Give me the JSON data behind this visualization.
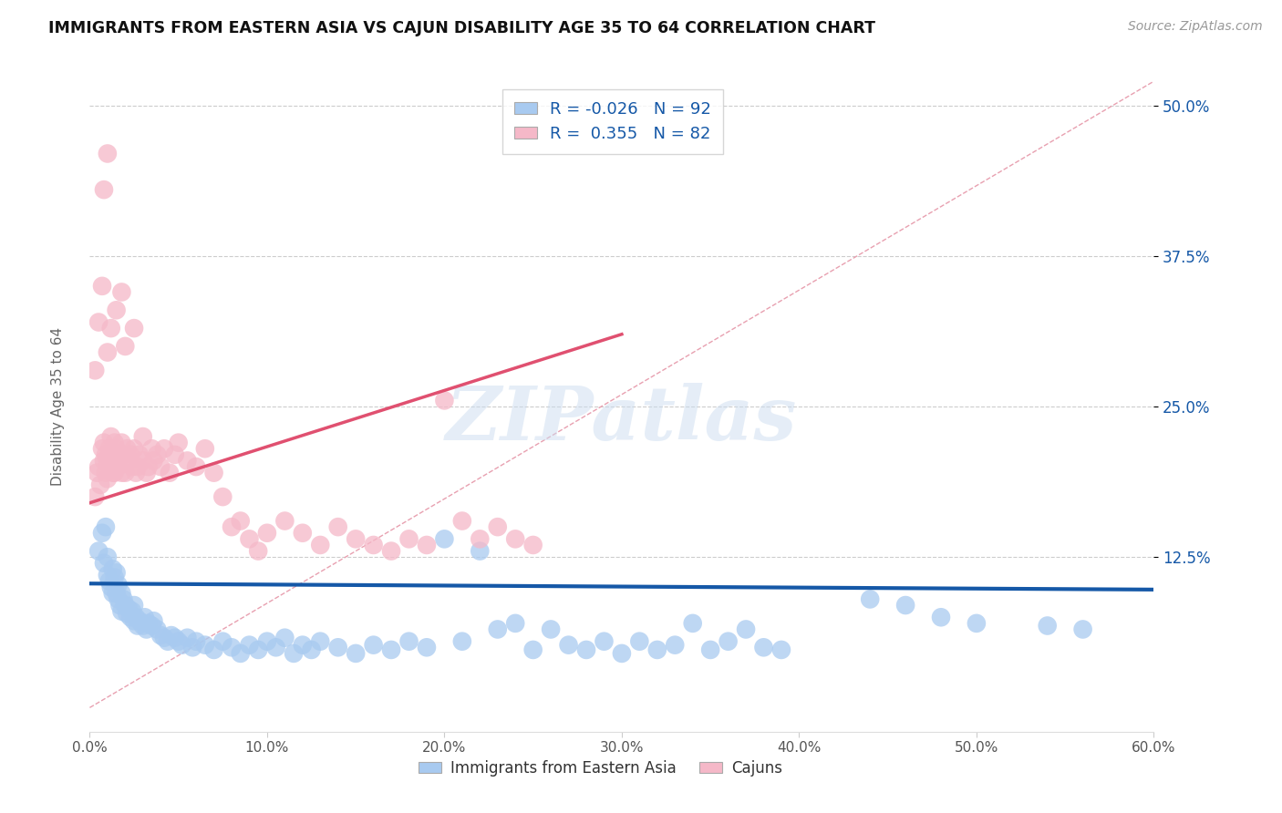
{
  "title": "IMMIGRANTS FROM EASTERN ASIA VS CAJUN DISABILITY AGE 35 TO 64 CORRELATION CHART",
  "source_text": "Source: ZipAtlas.com",
  "ylabel": "Disability Age 35 to 64",
  "xlim": [
    0.0,
    0.6
  ],
  "ylim": [
    -0.02,
    0.52
  ],
  "xtick_labels": [
    "0.0%",
    "10.0%",
    "20.0%",
    "30.0%",
    "40.0%",
    "50.0%",
    "60.0%"
  ],
  "xtick_values": [
    0.0,
    0.1,
    0.2,
    0.3,
    0.4,
    0.5,
    0.6
  ],
  "ytick_labels": [
    "12.5%",
    "25.0%",
    "37.5%",
    "50.0%"
  ],
  "ytick_values": [
    0.125,
    0.25,
    0.375,
    0.5
  ],
  "legend_blue_label": "Immigrants from Eastern Asia",
  "legend_pink_label": "Cajuns",
  "r_blue": -0.026,
  "n_blue": 92,
  "r_pink": 0.355,
  "n_pink": 82,
  "blue_color": "#a8caf0",
  "pink_color": "#f5b8c8",
  "blue_line_color": "#1558a7",
  "pink_line_color": "#e05070",
  "ref_line_color": "#e8a0b0",
  "watermark": "ZIPatlas",
  "blue_trend_x0": 0.0,
  "blue_trend_y0": 0.103,
  "blue_trend_x1": 0.6,
  "blue_trend_y1": 0.098,
  "pink_trend_x0": 0.0,
  "pink_trend_y0": 0.17,
  "pink_trend_x1": 0.3,
  "pink_trend_y1": 0.31,
  "blue_scatter_x": [
    0.005,
    0.007,
    0.008,
    0.009,
    0.01,
    0.01,
    0.011,
    0.012,
    0.013,
    0.013,
    0.014,
    0.015,
    0.015,
    0.016,
    0.016,
    0.017,
    0.018,
    0.018,
    0.019,
    0.02,
    0.021,
    0.022,
    0.023,
    0.024,
    0.025,
    0.025,
    0.026,
    0.027,
    0.028,
    0.03,
    0.031,
    0.032,
    0.033,
    0.035,
    0.036,
    0.038,
    0.04,
    0.042,
    0.044,
    0.046,
    0.048,
    0.05,
    0.052,
    0.055,
    0.058,
    0.06,
    0.065,
    0.07,
    0.075,
    0.08,
    0.085,
    0.09,
    0.095,
    0.1,
    0.105,
    0.11,
    0.115,
    0.12,
    0.125,
    0.13,
    0.14,
    0.15,
    0.16,
    0.17,
    0.18,
    0.19,
    0.2,
    0.21,
    0.22,
    0.23,
    0.24,
    0.25,
    0.26,
    0.27,
    0.28,
    0.29,
    0.3,
    0.31,
    0.32,
    0.33,
    0.34,
    0.35,
    0.36,
    0.37,
    0.38,
    0.39,
    0.44,
    0.46,
    0.48,
    0.5,
    0.54,
    0.56
  ],
  "blue_scatter_y": [
    0.13,
    0.145,
    0.12,
    0.15,
    0.125,
    0.11,
    0.105,
    0.1,
    0.115,
    0.095,
    0.108,
    0.112,
    0.095,
    0.102,
    0.09,
    0.085,
    0.095,
    0.08,
    0.09,
    0.085,
    0.078,
    0.082,
    0.075,
    0.08,
    0.072,
    0.085,
    0.075,
    0.068,
    0.072,
    0.068,
    0.075,
    0.065,
    0.07,
    0.068,
    0.072,
    0.065,
    0.06,
    0.058,
    0.055,
    0.06,
    0.058,
    0.055,
    0.052,
    0.058,
    0.05,
    0.055,
    0.052,
    0.048,
    0.055,
    0.05,
    0.045,
    0.052,
    0.048,
    0.055,
    0.05,
    0.058,
    0.045,
    0.052,
    0.048,
    0.055,
    0.05,
    0.045,
    0.052,
    0.048,
    0.055,
    0.05,
    0.14,
    0.055,
    0.13,
    0.065,
    0.07,
    0.048,
    0.065,
    0.052,
    0.048,
    0.055,
    0.045,
    0.055,
    0.048,
    0.052,
    0.07,
    0.048,
    0.055,
    0.065,
    0.05,
    0.048,
    0.09,
    0.085,
    0.075,
    0.07,
    0.068,
    0.065
  ],
  "pink_scatter_x": [
    0.003,
    0.004,
    0.005,
    0.006,
    0.007,
    0.008,
    0.008,
    0.009,
    0.009,
    0.01,
    0.01,
    0.011,
    0.012,
    0.012,
    0.013,
    0.013,
    0.014,
    0.014,
    0.015,
    0.015,
    0.016,
    0.017,
    0.018,
    0.018,
    0.019,
    0.02,
    0.021,
    0.022,
    0.023,
    0.024,
    0.025,
    0.026,
    0.027,
    0.028,
    0.03,
    0.032,
    0.033,
    0.035,
    0.036,
    0.038,
    0.04,
    0.042,
    0.045,
    0.048,
    0.05,
    0.055,
    0.06,
    0.065,
    0.07,
    0.075,
    0.08,
    0.085,
    0.09,
    0.095,
    0.1,
    0.11,
    0.12,
    0.13,
    0.14,
    0.15,
    0.16,
    0.17,
    0.18,
    0.19,
    0.2,
    0.21,
    0.22,
    0.23,
    0.24,
    0.25,
    0.003,
    0.005,
    0.007,
    0.01,
    0.012,
    0.015,
    0.018,
    0.02,
    0.025,
    0.03,
    0.008,
    0.01
  ],
  "pink_scatter_y": [
    0.175,
    0.195,
    0.2,
    0.185,
    0.215,
    0.205,
    0.22,
    0.195,
    0.21,
    0.205,
    0.19,
    0.215,
    0.2,
    0.225,
    0.195,
    0.21,
    0.195,
    0.22,
    0.205,
    0.215,
    0.2,
    0.21,
    0.195,
    0.22,
    0.21,
    0.195,
    0.215,
    0.205,
    0.21,
    0.2,
    0.215,
    0.195,
    0.2,
    0.21,
    0.205,
    0.195,
    0.2,
    0.215,
    0.205,
    0.21,
    0.2,
    0.215,
    0.195,
    0.21,
    0.22,
    0.205,
    0.2,
    0.215,
    0.195,
    0.175,
    0.15,
    0.155,
    0.14,
    0.13,
    0.145,
    0.155,
    0.145,
    0.135,
    0.15,
    0.14,
    0.135,
    0.13,
    0.14,
    0.135,
    0.255,
    0.155,
    0.14,
    0.15,
    0.14,
    0.135,
    0.28,
    0.32,
    0.35,
    0.295,
    0.315,
    0.33,
    0.345,
    0.3,
    0.315,
    0.225,
    0.43,
    0.46
  ]
}
